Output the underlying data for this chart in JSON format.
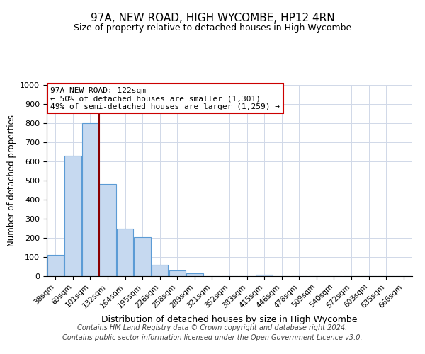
{
  "title": "97A, NEW ROAD, HIGH WYCOMBE, HP12 4RN",
  "subtitle": "Size of property relative to detached houses in High Wycombe",
  "xlabel": "Distribution of detached houses by size in High Wycombe",
  "ylabel": "Number of detached properties",
  "bar_labels": [
    "38sqm",
    "69sqm",
    "101sqm",
    "132sqm",
    "164sqm",
    "195sqm",
    "226sqm",
    "258sqm",
    "289sqm",
    "321sqm",
    "352sqm",
    "383sqm",
    "415sqm",
    "446sqm",
    "478sqm",
    "509sqm",
    "540sqm",
    "572sqm",
    "603sqm",
    "635sqm",
    "666sqm"
  ],
  "bar_values": [
    110,
    630,
    800,
    480,
    250,
    205,
    60,
    28,
    15,
    0,
    0,
    0,
    8,
    0,
    0,
    0,
    0,
    0,
    0,
    0,
    0
  ],
  "bar_color": "#c6d9f0",
  "bar_edge_color": "#5b9bd5",
  "vline_color": "#8b0000",
  "vline_pos": 2.5,
  "ylim": [
    0,
    1000
  ],
  "yticks": [
    0,
    100,
    200,
    300,
    400,
    500,
    600,
    700,
    800,
    900,
    1000
  ],
  "annotation_title": "97A NEW ROAD: 122sqm",
  "annotation_line1": "← 50% of detached houses are smaller (1,301)",
  "annotation_line2": "49% of semi-detached houses are larger (1,259) →",
  "annotation_box_color": "#ffffff",
  "annotation_box_edge": "#cc0000",
  "footnote1": "Contains HM Land Registry data © Crown copyright and database right 2024.",
  "footnote2": "Contains public sector information licensed under the Open Government Licence v3.0.",
  "background_color": "#ffffff",
  "grid_color": "#d0d8e8"
}
